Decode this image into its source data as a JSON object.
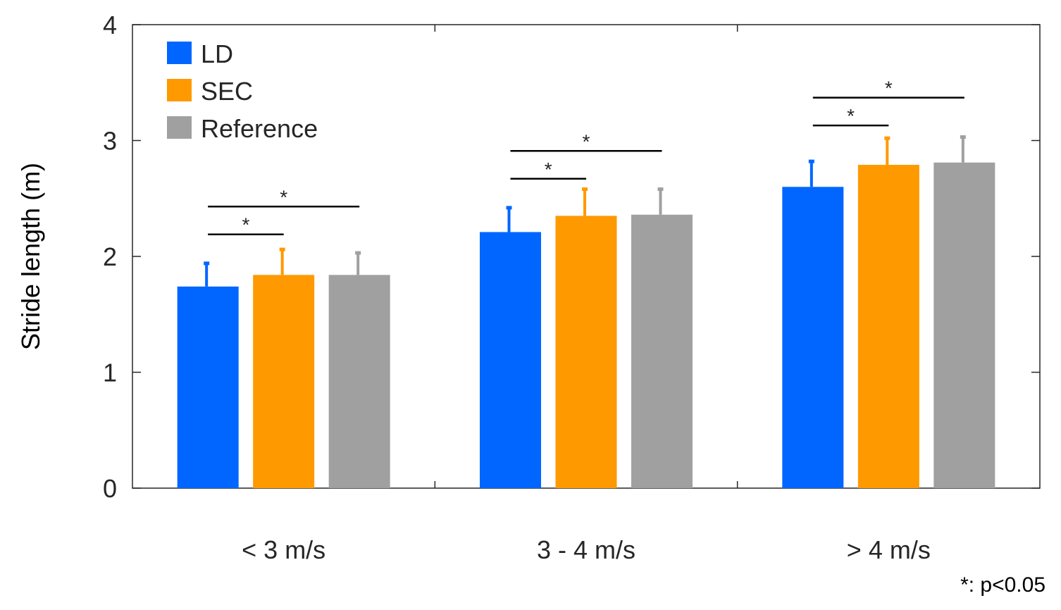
{
  "chart_data": {
    "type": "bar",
    "title": "",
    "xlabel": "",
    "ylabel": "Stride length (m)",
    "ylim": [
      0,
      4
    ],
    "yticks": [
      "0",
      "1",
      "2",
      "3",
      "4"
    ],
    "grid": false,
    "legend_position": "top-left",
    "categories": [
      "< 3 m/s",
      "3 - 4 m/s",
      "> 4 m/s"
    ],
    "series": [
      {
        "name": "LD",
        "color": "#0066ff",
        "values": [
          1.74,
          2.21,
          2.6
        ],
        "errors": [
          0.2,
          0.21,
          0.22
        ]
      },
      {
        "name": "SEC",
        "color": "#ff9900",
        "values": [
          1.84,
          2.35,
          2.79
        ],
        "errors": [
          0.22,
          0.23,
          0.23
        ]
      },
      {
        "name": "Reference",
        "color": "#a0a0a0",
        "values": [
          1.84,
          2.36,
          2.81
        ],
        "errors": [
          0.19,
          0.22,
          0.22
        ]
      }
    ],
    "significance": [
      {
        "category": 0,
        "from_series": 0,
        "to_series": 1,
        "y": 2.19,
        "label": "*"
      },
      {
        "category": 0,
        "from_series": 0,
        "to_series": 2,
        "y": 2.43,
        "label": "*"
      },
      {
        "category": 1,
        "from_series": 0,
        "to_series": 1,
        "y": 2.67,
        "label": "*"
      },
      {
        "category": 1,
        "from_series": 0,
        "to_series": 2,
        "y": 2.91,
        "label": "*"
      },
      {
        "category": 2,
        "from_series": 0,
        "to_series": 1,
        "y": 3.13,
        "label": "*"
      },
      {
        "category": 2,
        "from_series": 0,
        "to_series": 2,
        "y": 3.37,
        "label": "*"
      }
    ],
    "annotation": "*: p<0.05"
  }
}
